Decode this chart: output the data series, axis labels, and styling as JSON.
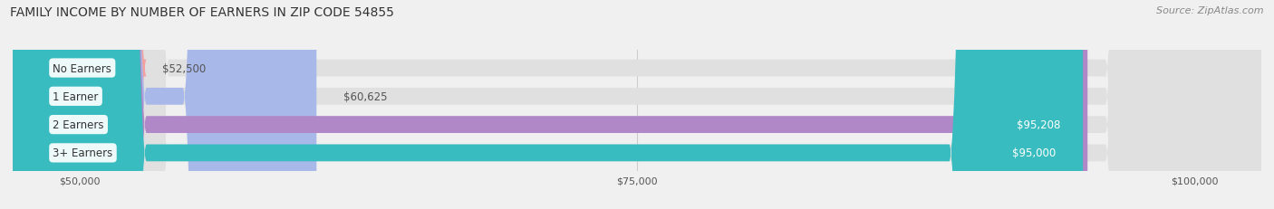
{
  "title": "FAMILY INCOME BY NUMBER OF EARNERS IN ZIP CODE 54855",
  "source": "Source: ZipAtlas.com",
  "categories": [
    "No Earners",
    "1 Earner",
    "2 Earners",
    "3+ Earners"
  ],
  "values": [
    52500,
    60625,
    95208,
    95000
  ],
  "bar_colors": [
    "#f4a0a0",
    "#a8b8e8",
    "#b088c8",
    "#38bcc0"
  ],
  "label_colors": [
    "#555555",
    "#555555",
    "#ffffff",
    "#ffffff"
  ],
  "value_labels": [
    "$52,500",
    "$60,625",
    "$95,208",
    "$95,000"
  ],
  "xmin": 47000,
  "xmax": 103000,
  "xticks": [
    50000,
    75000,
    100000
  ],
  "xtick_labels": [
    "$50,000",
    "$75,000",
    "$100,000"
  ],
  "background_color": "#f0f0f0",
  "title_fontsize": 10,
  "source_fontsize": 8,
  "label_fontsize": 8.5,
  "value_fontsize": 8.5
}
